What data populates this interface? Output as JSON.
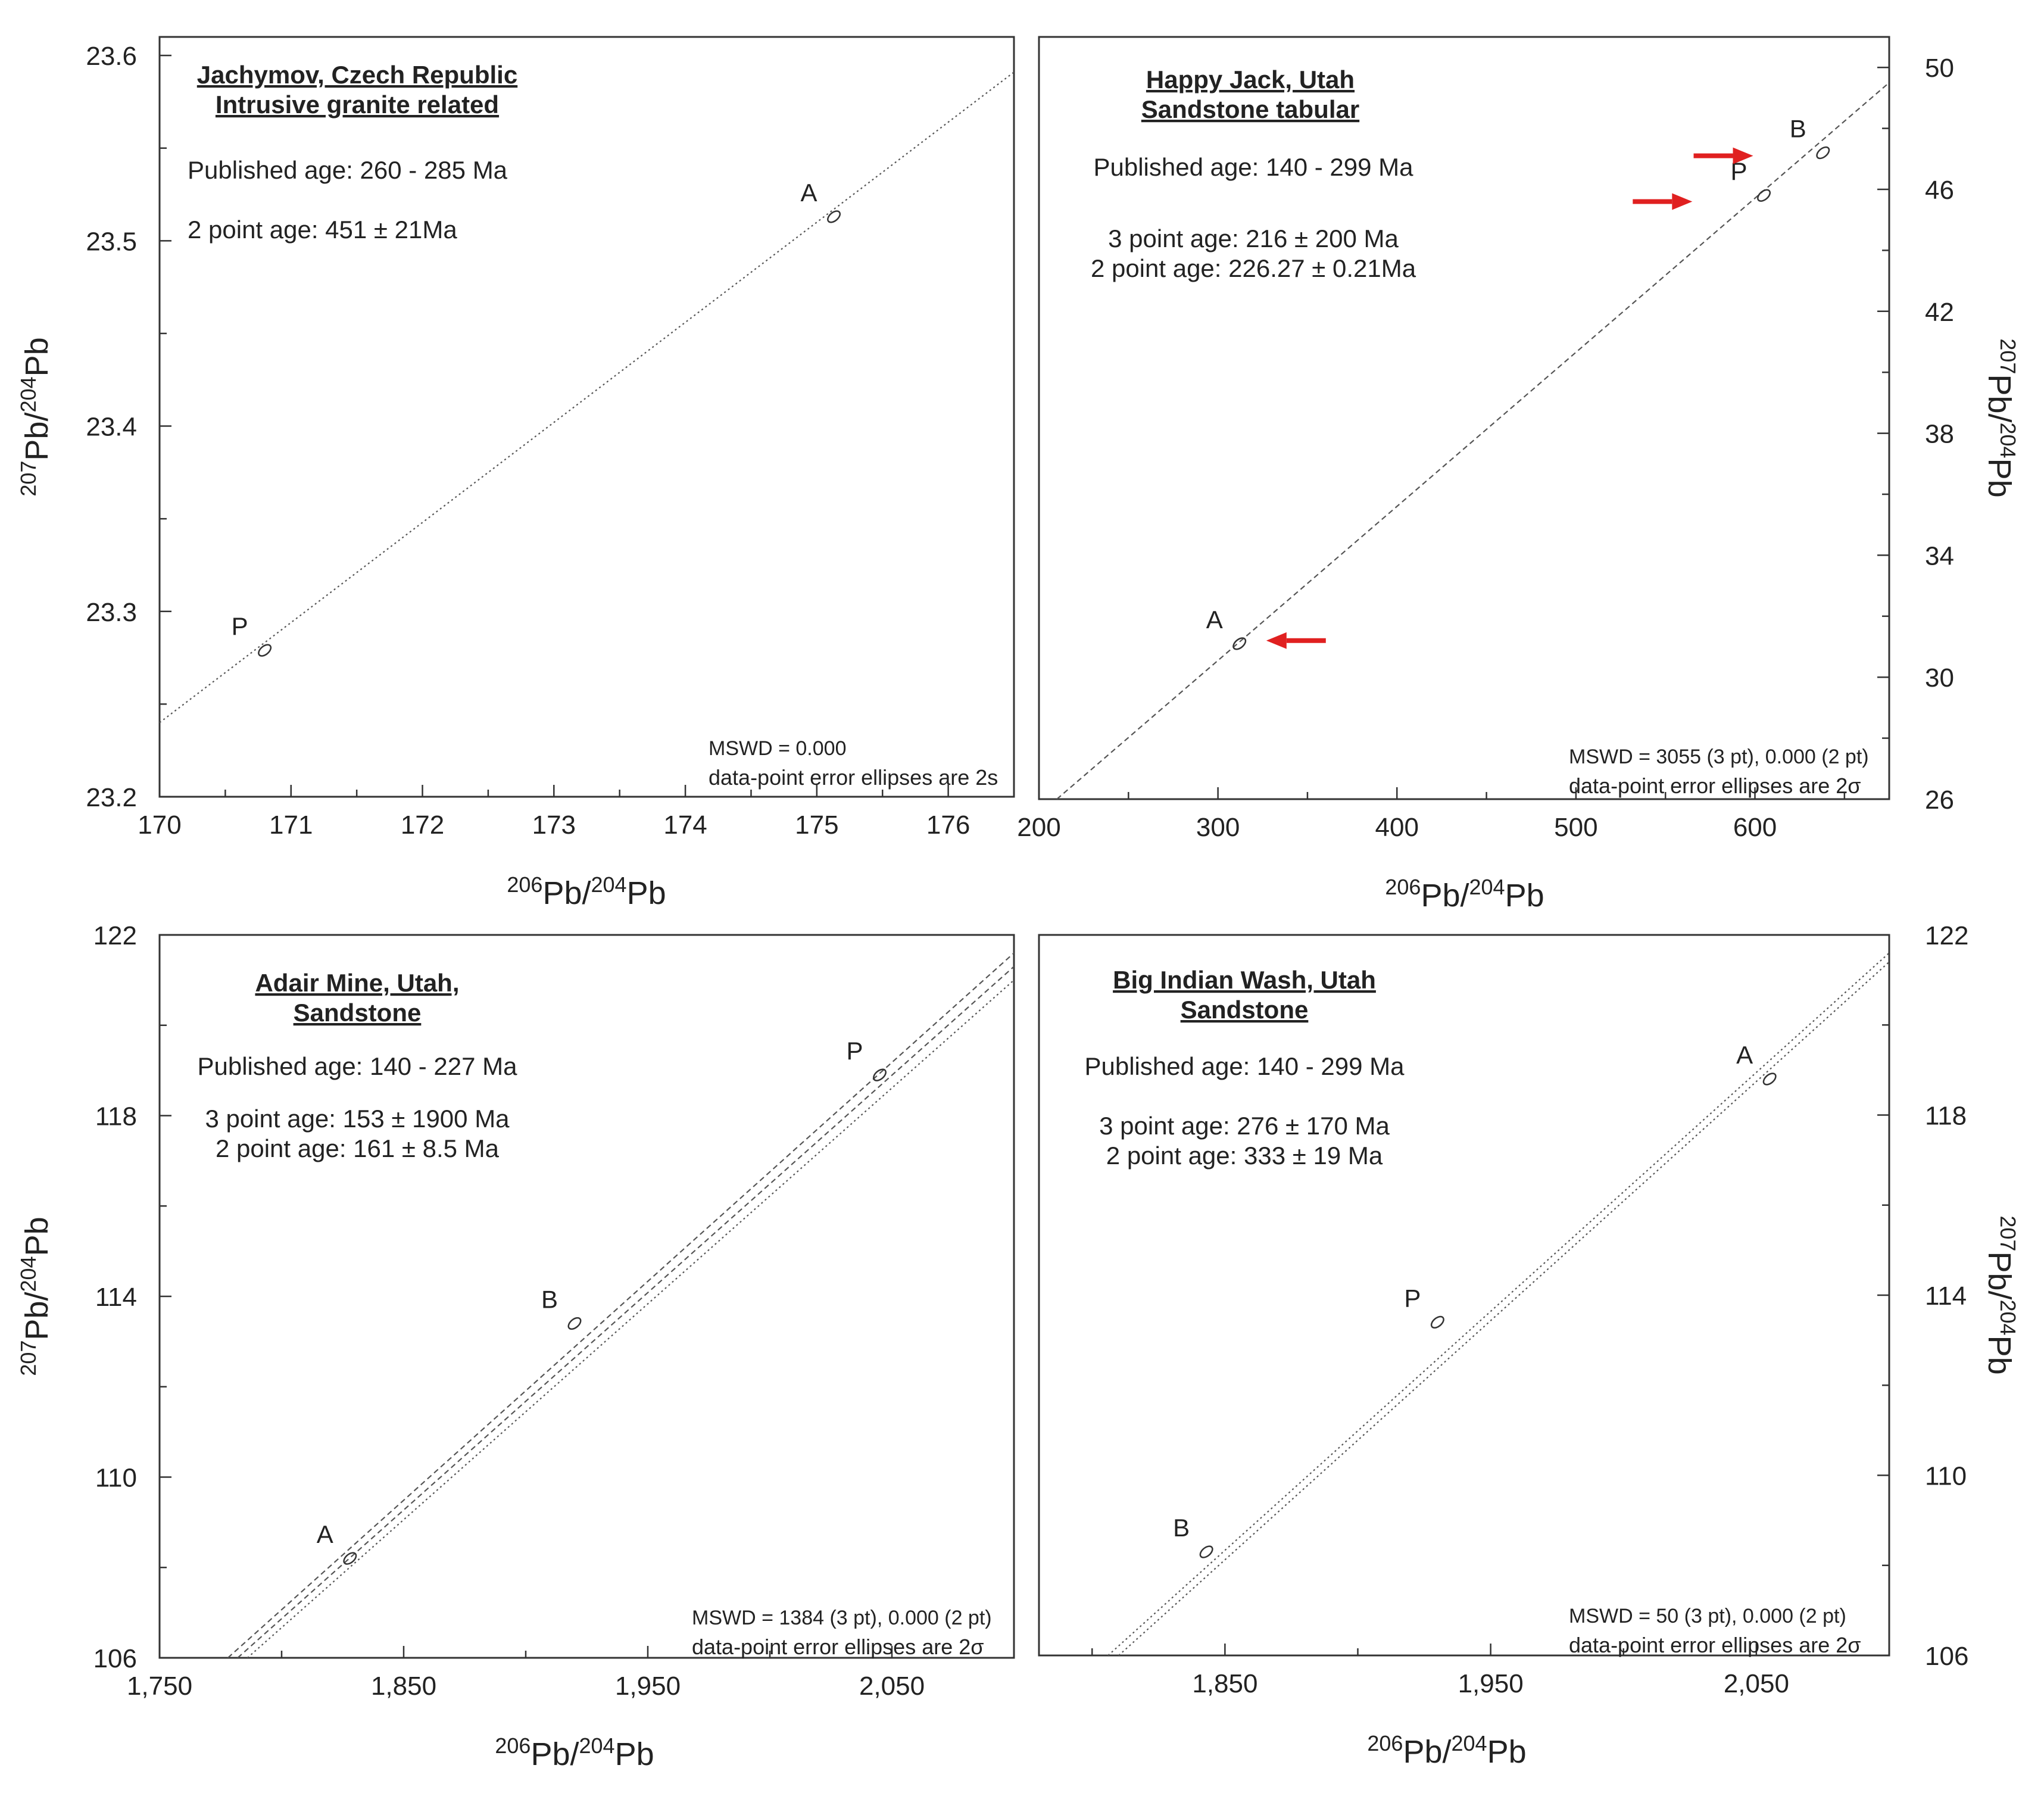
{
  "chart_data": [
    {
      "type": "scatter",
      "panel": "top-left",
      "title_lines": [
        "Jachymov, Czech Republic",
        "Intrusive granite related"
      ],
      "info_lines": [
        "Published age: 260 - 285 Ma",
        "2 point age: 451 ± 21Ma"
      ],
      "xlabel": {
        "sup": "206",
        "main": "Pb/",
        "sup2": "204",
        "main2": "Pb"
      },
      "ylabel": {
        "sup": "207",
        "main": "Pb/",
        "sup2": "204",
        "main2": "Pb"
      },
      "ylabel_side": "left",
      "xlim": [
        170,
        176.5
      ],
      "ylim": [
        23.2,
        23.61
      ],
      "xticks": [
        170,
        171,
        172,
        173,
        174,
        175,
        176
      ],
      "xtick_labels": [
        "170",
        "171",
        "172",
        "173",
        "174",
        "175",
        "176"
      ],
      "yticks": [
        23.2,
        23.3,
        23.4,
        23.5,
        23.6
      ],
      "ytick_labels": [
        "23.2",
        "23.3",
        "23.4",
        "23.5",
        "23.6"
      ],
      "points": [
        {
          "label": "A",
          "x": 175.13,
          "y": 23.513
        },
        {
          "label": "P",
          "x": 170.8,
          "y": 23.279
        }
      ],
      "isochrons": [
        {
          "x1": 170,
          "y1": 23.24,
          "x2": 176.5,
          "y2": 23.591,
          "style": "dotted"
        }
      ],
      "arrows": [],
      "footer_lines": [
        "MSWD = 0.000",
        "data-point error ellipses are 2s"
      ]
    },
    {
      "type": "scatter",
      "panel": "top-right",
      "title_lines": [
        "Happy Jack, Utah",
        "Sandstone tabular"
      ],
      "info_lines": [
        "Published age:  140 - 299 Ma",
        "3 point age:  216 ± 200 Ma",
        "2 point age:  226.27 ± 0.21Ma"
      ],
      "xlabel": {
        "sup": "206",
        "main": "Pb/",
        "sup2": "204",
        "main2": "Pb"
      },
      "ylabel": {
        "sup": "207",
        "main": "Pb/",
        "sup2": "204",
        "main2": "Pb"
      },
      "ylabel_side": "right",
      "xlim": [
        200,
        675
      ],
      "ylim": [
        26,
        51
      ],
      "xticks": [
        200,
        300,
        400,
        500,
        600
      ],
      "xtick_labels": [
        "200",
        "300",
        "400",
        "500",
        "600"
      ],
      "yticks": [
        26,
        30,
        34,
        38,
        42,
        46,
        50
      ],
      "ytick_labels": [
        "26",
        "30",
        "34",
        "38",
        "42",
        "46",
        "50"
      ],
      "points": [
        {
          "label": "A",
          "x": 312,
          "y": 31.1
        },
        {
          "label": "P",
          "x": 605,
          "y": 45.8
        },
        {
          "label": "B",
          "x": 638,
          "y": 47.2
        }
      ],
      "isochrons": [
        {
          "x1": 210,
          "y1": 26,
          "x2": 675,
          "y2": 49.5,
          "style": "dashed"
        }
      ],
      "arrows": [
        {
          "target": "A",
          "x": 327,
          "y": 31.2,
          "dir": "left"
        },
        {
          "target": "P",
          "x": 565,
          "y": 45.6,
          "dir": "right"
        },
        {
          "target": "B",
          "x": 599,
          "y": 47.1,
          "dir": "right"
        }
      ],
      "footer_lines": [
        "MSWD = 3055 (3 pt), 0.000 (2 pt)",
        "data-point error ellipses are 2σ"
      ]
    },
    {
      "type": "scatter",
      "panel": "bottom-left",
      "title_lines": [
        "Adair Mine, Utah,",
        "Sandstone"
      ],
      "info_lines": [
        "Published age:  140 - 227 Ma",
        "3 point age:  153 ± 1900 Ma",
        "2 point age:  161 ± 8.5 Ma"
      ],
      "xlabel": {
        "sup": "206",
        "main": "Pb/",
        "sup2": "204",
        "main2": "Pb"
      },
      "ylabel": {
        "sup": "207",
        "main": "Pb/",
        "sup2": "204",
        "main2": "Pb"
      },
      "ylabel_side": "left",
      "xlim": [
        1750,
        2100
      ],
      "ylim": [
        106,
        122
      ],
      "xticks": [
        1750,
        1850,
        1950,
        2050
      ],
      "xtick_labels": [
        "1,750",
        "1,850",
        "1,950",
        "2,050"
      ],
      "yticks": [
        106,
        110,
        114,
        118,
        122
      ],
      "ytick_labels": [
        "106",
        "110",
        "114",
        "118",
        "122"
      ],
      "points": [
        {
          "label": "A",
          "x": 1828,
          "y": 108.2
        },
        {
          "label": "B",
          "x": 1920,
          "y": 113.4
        },
        {
          "label": "P",
          "x": 2045,
          "y": 118.9
        }
      ],
      "isochrons": [
        {
          "x1": 1778,
          "y1": 106,
          "x2": 2100,
          "y2": 121.6,
          "style": "dashed"
        },
        {
          "x1": 1782,
          "y1": 106,
          "x2": 2100,
          "y2": 121.3,
          "style": "dashed"
        },
        {
          "x1": 1786,
          "y1": 106,
          "x2": 2100,
          "y2": 121.0,
          "style": "dotted"
        }
      ],
      "arrows": [],
      "footer_lines": [
        "MSWD = 1384 (3 pt), 0.000 (2 pt)",
        "data-point error ellipses are 2σ"
      ]
    },
    {
      "type": "scatter",
      "panel": "bottom-right",
      "title_lines": [
        "Big Indian Wash, Utah",
        "Sandstone"
      ],
      "info_lines": [
        "Published age:  140 - 299 Ma",
        "3 point age:  276 ± 170 Ma",
        "2 point age:  333 ± 19 Ma"
      ],
      "xlabel": {
        "sup": "206",
        "main": "Pb/",
        "sup2": "204",
        "main2": "Pb"
      },
      "ylabel": {
        "sup": "207",
        "main": "Pb/",
        "sup2": "204",
        "main2": "Pb"
      },
      "ylabel_side": "right",
      "xlim": [
        1780,
        2100
      ],
      "ylim": [
        106,
        122
      ],
      "xticks": [
        1850,
        1950,
        2050
      ],
      "xtick_labels": [
        "1,850",
        "1,950",
        "2,050"
      ],
      "yticks": [
        106,
        110,
        114,
        118,
        122
      ],
      "ytick_labels": [
        "106",
        "110",
        "114",
        "118",
        "122"
      ],
      "points": [
        {
          "label": "B",
          "x": 1843,
          "y": 108.3
        },
        {
          "label": "P",
          "x": 1930,
          "y": 113.4
        },
        {
          "label": "A",
          "x": 2055,
          "y": 118.8
        }
      ],
      "isochrons": [
        {
          "x1": 1810,
          "y1": 106,
          "x2": 2100,
          "y2": 121.4,
          "style": "dotted"
        },
        {
          "x1": 1806,
          "y1": 106,
          "x2": 2100,
          "y2": 121.6,
          "style": "dotted"
        }
      ],
      "arrows": [],
      "footer_lines": [
        "MSWD = 50 (3 pt), 0.000 (2 pt)",
        "data-point error ellipses are 2σ"
      ]
    }
  ]
}
